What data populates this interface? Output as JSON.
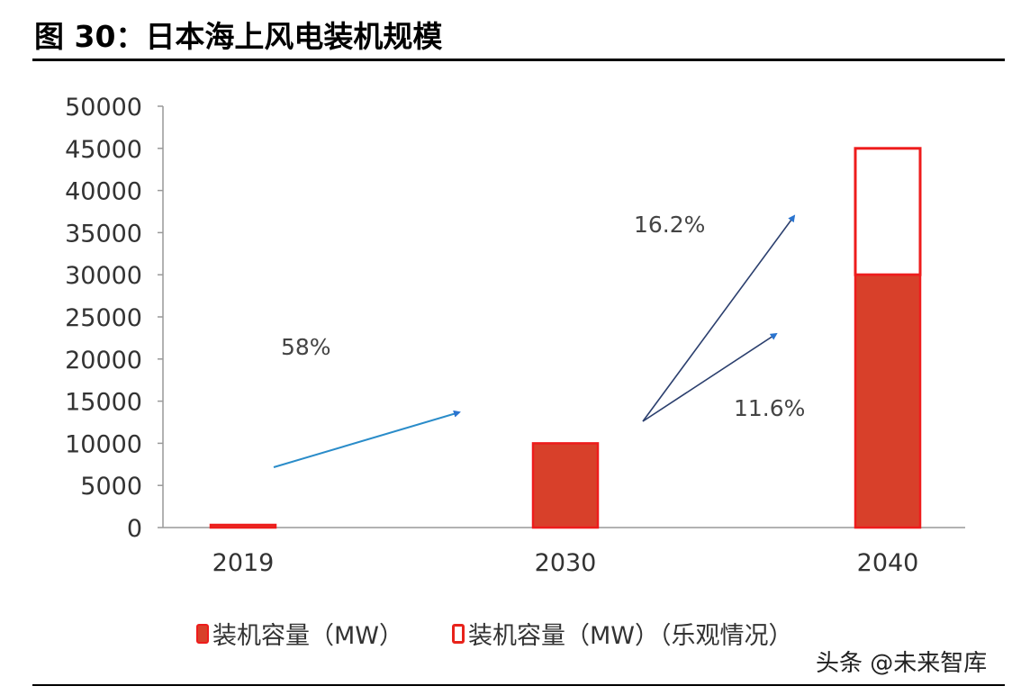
{
  "figure": {
    "title": "图 30：日本海上风电装机规模"
  },
  "watermark": "头条 @未来智库",
  "colors": {
    "bar_fill": "#d8402a",
    "bar_border": "#ee1c1c",
    "arrow": "#2a74cf",
    "axis": "#999999"
  },
  "chart_data": {
    "type": "bar",
    "categories": [
      "2019",
      "2030",
      "2040"
    ],
    "series": [
      {
        "name": "装机容量（MW）",
        "values": [
          65,
          10000,
          30000
        ],
        "style": "solid"
      },
      {
        "name": "装机容量（MW）（乐观情况）",
        "values": [
          65,
          10000,
          45000
        ],
        "style": "outline"
      }
    ],
    "ylim": [
      0,
      50000
    ],
    "yticks": [
      0,
      5000,
      10000,
      15000,
      20000,
      25000,
      30000,
      35000,
      40000,
      45000,
      50000
    ],
    "legend_position": "bottom",
    "grid": false,
    "annotations": [
      {
        "text": "58%"
      },
      {
        "text": "16.2%"
      },
      {
        "text": "11.6%"
      }
    ]
  }
}
